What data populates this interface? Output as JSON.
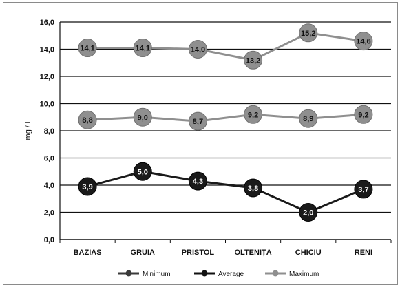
{
  "chart_data": {
    "type": "line",
    "categories": [
      "BAZIAS",
      "GRUIA",
      "PRISTOL",
      "OLTENIȚA",
      "CHICIU",
      "RENI"
    ],
    "ylabel": "mg / l",
    "ylim": [
      0,
      16
    ],
    "yticks": [
      "0,0",
      "2,0",
      "4,0",
      "6,0",
      "8,0",
      "10,0",
      "12,0",
      "14,0",
      "16,0"
    ],
    "grid": true,
    "legend_position": "bottom",
    "series": [
      {
        "name": "Minimum",
        "values": [
          3.9,
          5.0,
          4.3,
          3.8,
          2.0,
          3.7
        ],
        "labels": [
          "3,9",
          "5,0",
          "4,3",
          "3,8",
          "2,0",
          "3,7"
        ],
        "color": "#1a1a1a",
        "label_color": "#ffffff"
      },
      {
        "name": "Average",
        "values": [
          8.8,
          9.0,
          8.7,
          9.2,
          8.9,
          9.2
        ],
        "labels": [
          "8,8",
          "9,0",
          "8,7",
          "9,2",
          "8,9",
          "9,2"
        ],
        "color": "#8f8f8f",
        "label_color": "#111111"
      },
      {
        "name": "Maximum",
        "values": [
          14.1,
          14.1,
          14.0,
          13.2,
          15.2,
          14.6
        ],
        "labels": [
          "14,1",
          "14,1",
          "14,0",
          "13,2",
          "15,2",
          "14,6"
        ],
        "color": "#8f8f8f",
        "label_color": "#111111"
      }
    ],
    "legend": [
      {
        "label": "Minimum",
        "color": "#3a3a3a"
      },
      {
        "label": "Average",
        "color": "#111111"
      },
      {
        "label": "Maximum",
        "color": "#8f8f8f"
      }
    ]
  }
}
